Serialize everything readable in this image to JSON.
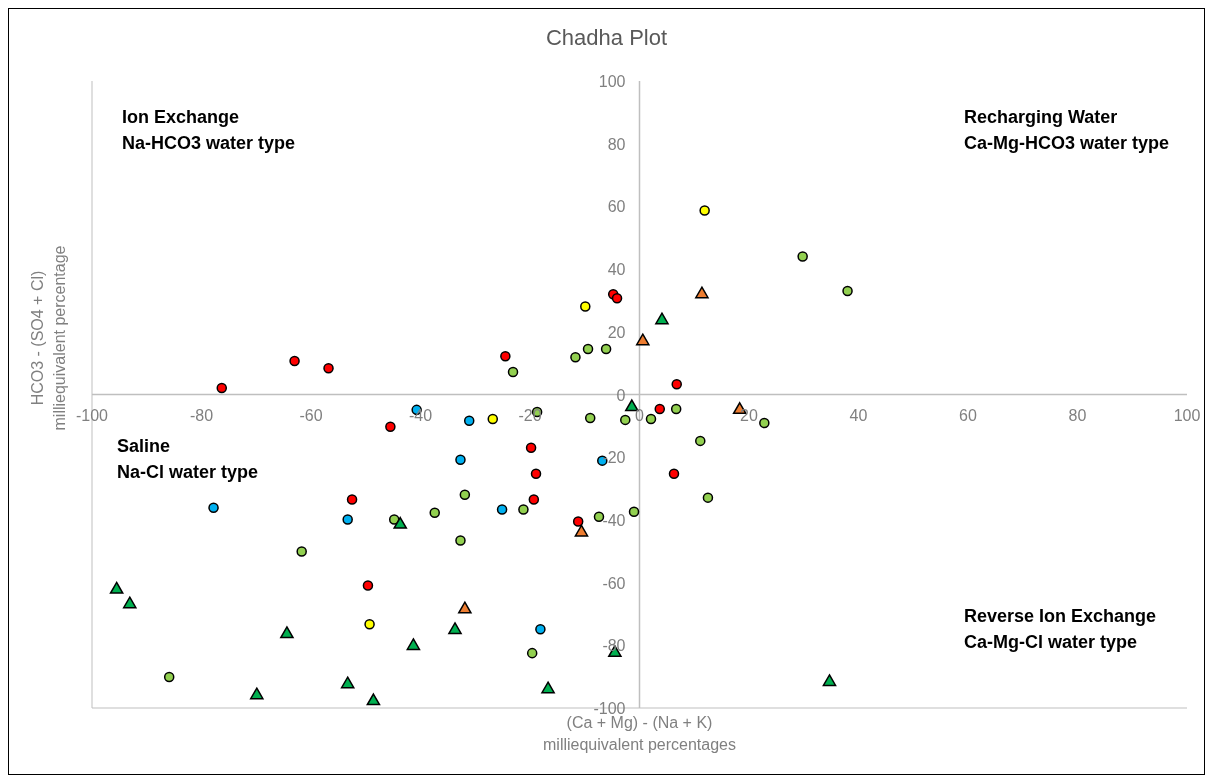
{
  "chart_data": {
    "type": "scatter",
    "title": "Chadha Plot",
    "xlabel": "(Ca + Mg) - (Na + K)\nmilliequivalent percentages",
    "ylabel": "HCO3 - (SO4 + Cl)\nmilliequivalent percentage",
    "xlim": [
      -100,
      100
    ],
    "ylim": [
      -100,
      100
    ],
    "xticks": [
      -100,
      -80,
      -60,
      -40,
      -20,
      0,
      20,
      40,
      60,
      80,
      100
    ],
    "yticks": [
      -100,
      -80,
      -60,
      -40,
      -20,
      0,
      20,
      40,
      60,
      80,
      100
    ],
    "grid": false,
    "legend": false,
    "annotations": [
      "Ion Exchange\nNa-HCO3 water type",
      "Recharging Water\nCa-Mg-HCO3 water type",
      "Saline\nNa-Cl water type",
      "Reverse Ion Exchange\nCa-Mg-Cl water type"
    ],
    "series": [
      {
        "color": "#ff0000",
        "marker": "circle",
        "x": [
          -76.3,
          -63.0,
          -56.8,
          -24.5,
          -4.8,
          -4.1,
          6.8,
          3.7,
          -45.5,
          -19.8,
          -18.9,
          -52.5,
          -19.3,
          6.3,
          -11.2,
          -49.6
        ],
        "values": [
          2.1,
          10.7,
          8.4,
          12.2,
          32.0,
          30.7,
          3.3,
          -4.6,
          -10.3,
          -17.0,
          -25.3,
          -33.5,
          -33.5,
          -25.3,
          -40.5,
          -60.9
        ]
      },
      {
        "color": "#ffff00",
        "marker": "circle",
        "x": [
          11.9,
          -9.9,
          -26.8,
          -49.3
        ],
        "values": [
          58.7,
          28.1,
          -7.8,
          -73.3
        ]
      },
      {
        "color": "#00b0f0",
        "marker": "circle",
        "x": [
          -40.7,
          -31.1,
          -32.7,
          -77.8,
          -53.3,
          -25.1,
          -6.8,
          -18.1
        ],
        "values": [
          -4.9,
          -8.4,
          -20.8,
          -36.1,
          -39.9,
          -36.7,
          -21.1,
          -74.9
        ]
      },
      {
        "color": "#92d050",
        "marker": "circle",
        "x": [
          -23.1,
          -11.7,
          -9.4,
          -6.1,
          -18.7,
          -9.0,
          -2.6,
          2.1,
          6.7,
          11.1,
          22.8,
          12.5,
          -1.0,
          -7.4,
          29.8,
          38.0,
          -31.9,
          -37.4,
          -44.8,
          -21.2,
          -32.7,
          -61.7,
          -19.6,
          -85.9
        ],
        "values": [
          7.2,
          11.9,
          14.5,
          14.5,
          -5.6,
          -7.5,
          -8.1,
          -7.8,
          -4.6,
          -14.8,
          -9.1,
          -32.9,
          -37.4,
          -39.0,
          44.0,
          33.0,
          -32.0,
          -37.7,
          -39.9,
          -36.7,
          -46.6,
          -50.1,
          -82.5,
          -90.1
        ]
      },
      {
        "color": "#ed7d31",
        "marker": "triangle",
        "x": [
          0.6,
          11.4,
          18.3,
          -10.6,
          -31.9
        ],
        "values": [
          17.0,
          32.0,
          -4.9,
          -44.0,
          -68.5
        ]
      },
      {
        "color": "#00b050",
        "marker": "triangle",
        "x": [
          4.1,
          -1.4,
          -43.7,
          -95.5,
          -93.1,
          -64.4,
          -41.3,
          -33.7,
          -4.5,
          -53.3,
          -48.6,
          -69.9,
          -16.7,
          34.7
        ],
        "values": [
          23.7,
          -4.0,
          -41.5,
          -62.2,
          -66.9,
          -76.4,
          -80.2,
          -75.1,
          -82.4,
          -92.4,
          -97.8,
          -95.9,
          -94.0,
          -91.7
        ]
      }
    ]
  }
}
